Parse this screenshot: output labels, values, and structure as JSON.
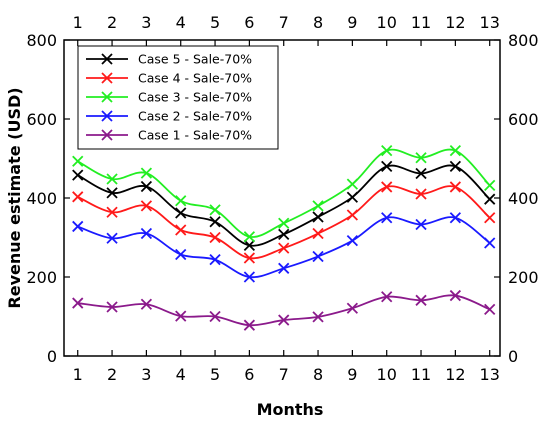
{
  "chart_data": {
    "type": "line",
    "xlabel": "Months",
    "ylabel": "Revenue estimate (USD)",
    "x": [
      1,
      2,
      3,
      4,
      5,
      6,
      7,
      8,
      9,
      10,
      11,
      12,
      13
    ],
    "xlim": [
      0.6,
      13.3
    ],
    "ylim": [
      0,
      800
    ],
    "yticks": [
      0,
      200,
      400,
      600,
      800
    ],
    "grid": false,
    "mirrored_axes": true,
    "legend_position": "top-left",
    "smooth_lines": true,
    "marker": "x",
    "series": [
      {
        "name": "Case 5 - Sale-70%",
        "color": "#000000",
        "values": [
          458,
          413,
          429,
          362,
          340,
          280,
          308,
          352,
          402,
          480,
          462,
          480,
          397
        ]
      },
      {
        "name": "Case 4 - Sale-70%",
        "color": "#ff1a1a",
        "values": [
          403,
          364,
          380,
          319,
          300,
          248,
          273,
          310,
          357,
          428,
          410,
          428,
          350
        ]
      },
      {
        "name": "Case 3 - Sale-70%",
        "color": "#22ee22",
        "values": [
          493,
          448,
          463,
          393,
          370,
          302,
          336,
          380,
          435,
          520,
          502,
          520,
          432
        ]
      },
      {
        "name": "Case 2 - Sale-70%",
        "color": "#1a1aff",
        "values": [
          328,
          298,
          310,
          257,
          244,
          200,
          222,
          252,
          292,
          350,
          333,
          350,
          286
        ]
      },
      {
        "name": "Case 1 - Sale-70%",
        "color": "#8b1a8b",
        "values": [
          134,
          124,
          131,
          101,
          100,
          78,
          91,
          99,
          121,
          150,
          141,
          153,
          118
        ]
      }
    ]
  }
}
